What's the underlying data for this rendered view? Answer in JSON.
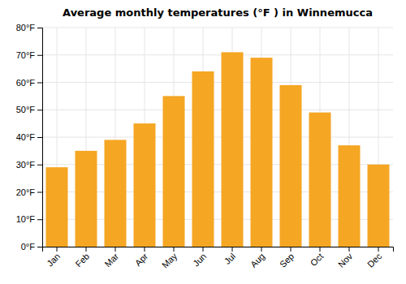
{
  "chart_data": {
    "type": "bar",
    "title": "Average monthly temperatures (°F ) in Winnemucca",
    "categories": [
      "Jan",
      "Feb",
      "Mar",
      "Apr",
      "May",
      "Jun",
      "Jul",
      "Aug",
      "Sep",
      "Oct",
      "Nov",
      "Dec"
    ],
    "values": [
      29,
      35,
      39,
      45,
      55,
      64,
      71,
      69,
      59,
      49,
      37,
      30
    ],
    "color": "#F5A623",
    "ylim": [
      0,
      80
    ],
    "yticks": [
      {
        "value": 0,
        "label": "0°F"
      },
      {
        "value": 10,
        "label": "10°F"
      },
      {
        "value": 20,
        "label": "20°F"
      },
      {
        "value": 30,
        "label": "30°F"
      },
      {
        "value": 40,
        "label": "40°F"
      },
      {
        "value": 50,
        "label": "50°F"
      },
      {
        "value": 60,
        "label": "60°F"
      },
      {
        "value": 70,
        "label": "70°F"
      },
      {
        "value": 80,
        "label": "80°F"
      }
    ],
    "grid": true
  }
}
